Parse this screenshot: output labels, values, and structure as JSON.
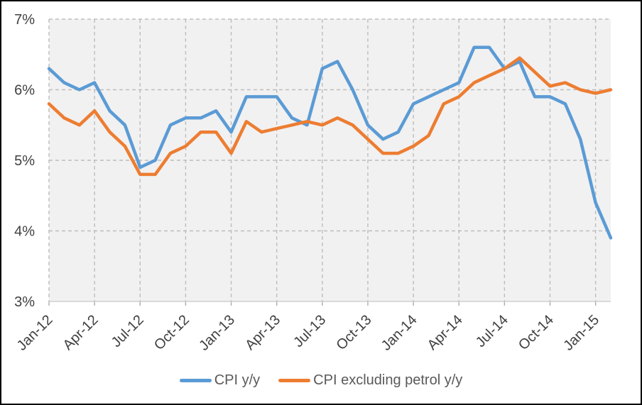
{
  "chart_data": {
    "type": "line",
    "months": [
      "Jan-12",
      "Feb-12",
      "Mar-12",
      "Apr-12",
      "May-12",
      "Jun-12",
      "Jul-12",
      "Aug-12",
      "Sep-12",
      "Oct-12",
      "Nov-12",
      "Dec-12",
      "Jan-13",
      "Feb-13",
      "Mar-13",
      "Apr-13",
      "May-13",
      "Jun-13",
      "Jul-13",
      "Aug-13",
      "Sep-13",
      "Oct-13",
      "Nov-13",
      "Dec-13",
      "Jan-14",
      "Feb-14",
      "Mar-14",
      "Apr-14",
      "May-14",
      "Jun-14",
      "Jul-14",
      "Aug-14",
      "Sep-14",
      "Oct-14",
      "Nov-14",
      "Dec-14",
      "Jan-15",
      "Feb-15"
    ],
    "x_tick_labels": [
      "Jan-12",
      "Apr-12",
      "Jul-12",
      "Oct-12",
      "Jan-13",
      "Apr-13",
      "Jul-13",
      "Oct-13",
      "Jan-14",
      "Apr-14",
      "Jul-14",
      "Oct-14",
      "Jan-15"
    ],
    "x_tick_interval_months": 3,
    "y_ticks": [
      7,
      6,
      5,
      4,
      3
    ],
    "y_tick_labels": [
      "7%",
      "6%",
      "5%",
      "4%",
      "3%"
    ],
    "ylim": [
      3,
      7
    ],
    "grid": "dashed",
    "legend_position": "bottom",
    "series": [
      {
        "name": "CPI y/y",
        "color": "#5B9BD5",
        "values": [
          6.3,
          6.1,
          6.0,
          6.1,
          5.7,
          5.5,
          4.9,
          5.0,
          5.5,
          5.6,
          5.6,
          5.7,
          5.4,
          5.9,
          5.9,
          5.9,
          5.6,
          5.5,
          6.3,
          6.4,
          6.0,
          5.5,
          5.3,
          5.4,
          5.8,
          5.9,
          6.0,
          6.1,
          6.6,
          6.6,
          6.3,
          6.4,
          5.9,
          5.9,
          5.8,
          5.3,
          4.4,
          3.9
        ]
      },
      {
        "name": "CPI excluding petrol y/y",
        "color": "#ED7D31",
        "values": [
          5.8,
          5.6,
          5.5,
          5.7,
          5.4,
          5.2,
          4.8,
          4.8,
          5.1,
          5.2,
          5.4,
          5.4,
          5.1,
          5.55,
          5.4,
          5.45,
          5.5,
          5.55,
          5.5,
          5.6,
          5.5,
          5.3,
          5.1,
          5.1,
          5.2,
          5.35,
          5.8,
          5.9,
          6.1,
          6.2,
          6.3,
          6.45,
          6.25,
          6.05,
          6.1,
          6.0,
          5.95,
          6.0
        ]
      }
    ],
    "colors": {
      "plot_bg": "#F1F1F1",
      "gridline": "#BDBDBD",
      "axis_line": "#CFCFCF",
      "tick": "#ADADAD",
      "axis_text": "#404040",
      "legend_text": "#595959"
    }
  }
}
